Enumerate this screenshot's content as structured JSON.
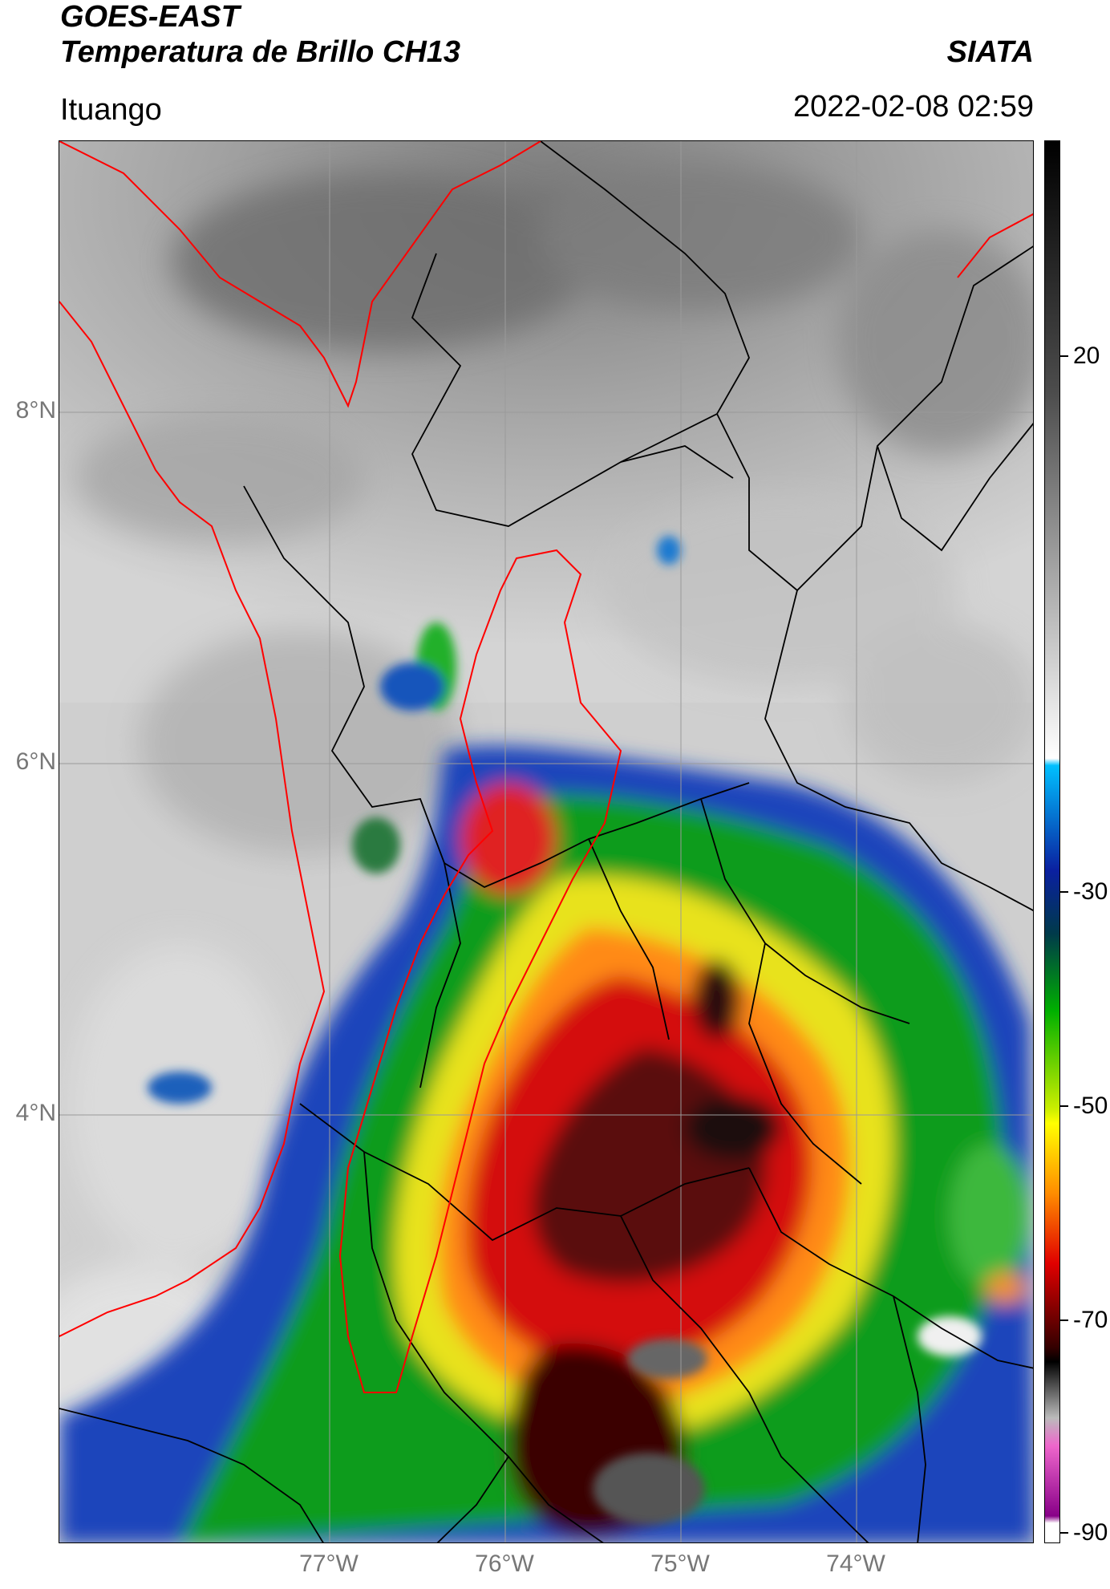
{
  "header": {
    "title_line1": "GOES-EAST",
    "title_line2": "Temperatura de Brillo CH13",
    "brand": "SIATA",
    "location": "Ituango",
    "timestamp": "2022-02-08 02:59"
  },
  "map": {
    "lat_ticks": [
      "8°N",
      "6°N",
      "4°N"
    ],
    "lon_ticks": [
      "77°W",
      "76°W",
      "75°W",
      "74°W"
    ],
    "coastline_color": "#ff0000",
    "border_color": "#000000",
    "gridline_color": "#999999"
  },
  "colorbar": {
    "tick_labels": [
      "20",
      "-30",
      "-50",
      "-70",
      "-90"
    ],
    "colors": [
      "#000000",
      "#4d4d4d",
      "#b3b3b3",
      "#ffffff",
      "#00bfff",
      "#0022aa",
      "#00a000",
      "#ffff00",
      "#ff8c00",
      "#dd0000",
      "#550000",
      "#000000",
      "#bbbbbb",
      "#ee66cc",
      "#880088"
    ]
  }
}
